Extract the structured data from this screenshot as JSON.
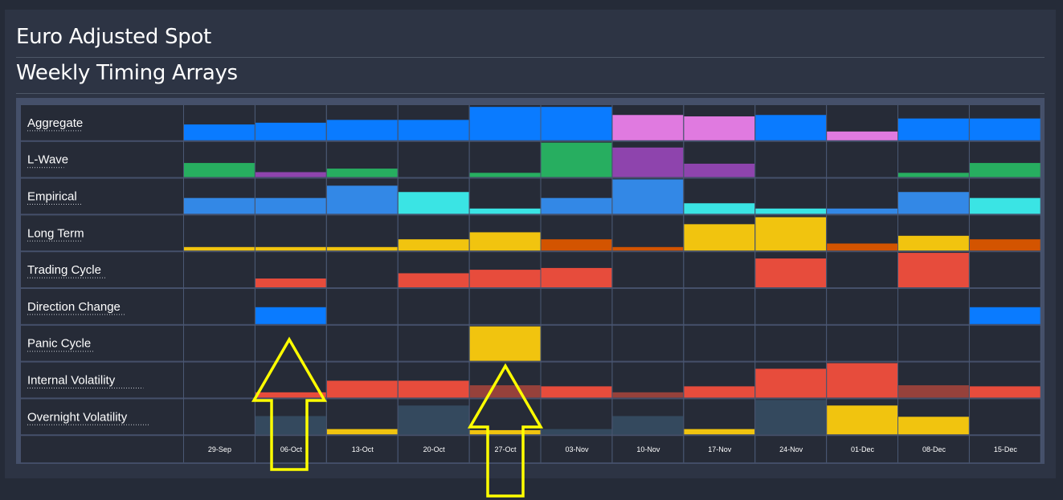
{
  "title": "Euro Adjusted Spot",
  "subtitle": "Weekly Timing Arrays",
  "colors": {
    "background": "#252b38",
    "panel": "#2d3444",
    "cell": "#262b37",
    "border": "#4a5873",
    "label": "#ffffff",
    "annotation": "#ffff00"
  },
  "chart_data": {
    "type": "heatmap",
    "title": "Weekly Timing Arrays",
    "scale": "relative bar height 0-1 per cell",
    "weeks": [
      "29-Sep",
      "06-Oct",
      "13-Oct",
      "20-Oct",
      "27-Oct",
      "03-Nov",
      "10-Nov",
      "17-Nov",
      "24-Nov",
      "01-Dec",
      "08-Dec",
      "15-Dec"
    ],
    "rows": [
      {
        "name": "Aggregate",
        "values": [
          0.45,
          0.5,
          0.58,
          0.58,
          0.95,
          0.95,
          0.72,
          0.68,
          0.72,
          0.25,
          0.62,
          0.62
        ],
        "colors": [
          "#0a7bff",
          "#0a7bff",
          "#0a7bff",
          "#0a7bff",
          "#0a7bff",
          "#0a7bff",
          "#e07ae0",
          "#e07ae0",
          "#0a7bff",
          "#e07ae0",
          "#0a7bff",
          "#0a7bff"
        ]
      },
      {
        "name": "L-Wave",
        "values": [
          0.4,
          0.14,
          0.24,
          0,
          0.12,
          0.98,
          0.84,
          0.38,
          0,
          0,
          0.12,
          0.4
        ],
        "colors": [
          "#27ae60",
          "#8e44ad",
          "#27ae60",
          "#27ae60",
          "#27ae60",
          "#27ae60",
          "#8e44ad",
          "#8e44ad",
          "#27ae60",
          "#27ae60",
          "#27ae60",
          "#27ae60"
        ]
      },
      {
        "name": "Empirical",
        "values": [
          0.45,
          0.45,
          0.8,
          0.62,
          0.15,
          0.45,
          0.98,
          0.3,
          0.15,
          0.15,
          0.62,
          0.45
        ],
        "colors": [
          "#3388e6",
          "#3388e6",
          "#3388e6",
          "#3ae4e4",
          "#3ae4e4",
          "#3388e6",
          "#3388e6",
          "#3ae4e4",
          "#3ae4e4",
          "#3388e6",
          "#3388e6",
          "#3ae4e4"
        ]
      },
      {
        "name": "Long Term",
        "values": [
          0.1,
          0.1,
          0.1,
          0.32,
          0.52,
          0.32,
          0.1,
          0.75,
          0.95,
          0.2,
          0.42,
          0.32
        ],
        "colors": [
          "#f1c40f",
          "#f1c40f",
          "#f1c40f",
          "#f1c40f",
          "#f1c40f",
          "#d35400",
          "#d35400",
          "#f1c40f",
          "#f1c40f",
          "#d35400",
          "#f1c40f",
          "#d35400"
        ]
      },
      {
        "name": "Trading Cycle",
        "values": [
          0,
          0.25,
          0,
          0.4,
          0.5,
          0.55,
          0,
          0,
          0.82,
          0,
          0.98,
          0
        ],
        "colors": [
          "#e74c3c",
          "#e74c3c",
          "#e74c3c",
          "#e74c3c",
          "#e74c3c",
          "#e74c3c",
          "#e74c3c",
          "#e74c3c",
          "#e74c3c",
          "#e74c3c",
          "#e74c3c",
          "#e74c3c"
        ]
      },
      {
        "name": "Direction Change",
        "values": [
          0,
          0.48,
          0,
          0,
          0,
          0,
          0,
          0,
          0,
          0,
          0,
          0.48
        ],
        "colors": [
          "#0a7bff",
          "#0a7bff",
          "#0a7bff",
          "#0a7bff",
          "#0a7bff",
          "#0a7bff",
          "#0a7bff",
          "#0a7bff",
          "#0a7bff",
          "#0a7bff",
          "#0a7bff",
          "#0a7bff"
        ]
      },
      {
        "name": "Panic Cycle",
        "values": [
          0,
          0,
          0,
          0,
          0.98,
          0,
          0,
          0,
          0,
          0,
          0,
          0
        ],
        "colors": [
          "#f1c40f",
          "#f1c40f",
          "#f1c40f",
          "#f1c40f",
          "#f1c40f",
          "#f1c40f",
          "#f1c40f",
          "#f1c40f",
          "#f1c40f",
          "#f1c40f",
          "#f1c40f",
          "#f1c40f"
        ]
      },
      {
        "name": "Internal Volatility",
        "values": [
          0,
          0.15,
          0.48,
          0.48,
          0.35,
          0.32,
          0.15,
          0.32,
          0.82,
          0.98,
          0.35,
          0.32
        ],
        "colors": [
          "#e74c3c",
          "#e74c3c",
          "#e74c3c",
          "#e74c3c",
          "#96413b",
          "#e74c3c",
          "#96413b",
          "#e74c3c",
          "#e74c3c",
          "#e74c3c",
          "#96413b",
          "#e74c3c"
        ]
      },
      {
        "name": "Overnight Volatility",
        "values": [
          0,
          0.52,
          0.15,
          0.82,
          0.12,
          0.15,
          0.52,
          0.15,
          0.98,
          0.82,
          0.5,
          0
        ],
        "colors": [
          "#34495e",
          "#34495e",
          "#f1c40f",
          "#34495e",
          "#f1c40f",
          "#34495e",
          "#34495e",
          "#f1c40f",
          "#34495e",
          "#f1c40f",
          "#f1c40f",
          "#34495e"
        ]
      }
    ]
  }
}
